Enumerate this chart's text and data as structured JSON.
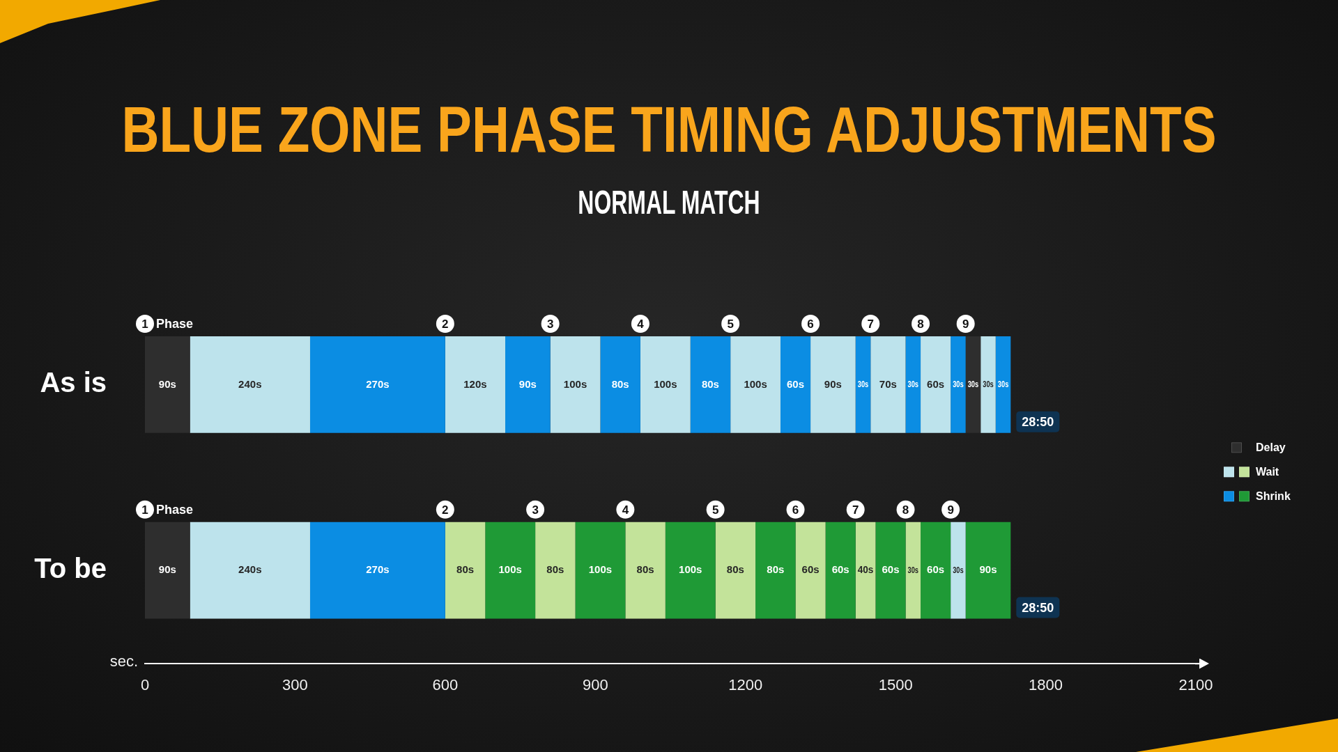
{
  "chart_data": {
    "type": "bar",
    "orientation": "horizontal",
    "stacked": true,
    "title": "BLUE ZONE PHASE TIMING ADJUSTMENTS",
    "subtitle": "NORMAL MATCH",
    "xlabel": "sec.",
    "categories": [
      "As is",
      "To be"
    ],
    "xlim": [
      0,
      2100
    ],
    "xticks": [
      0,
      300,
      600,
      900,
      1200,
      1500,
      1800,
      2100
    ],
    "legend": "right",
    "series": [
      {
        "name": "Delay",
        "colors": [
          "#2e2e2e",
          "#2e2e2e"
        ],
        "values": [
          90,
          90
        ],
        "value_labels": [
          "90s",
          "90s"
        ]
      },
      {
        "colors": [
          "#bde3ec",
          "#bde3ec"
        ],
        "values": [
          240,
          240
        ],
        "value_labels": [
          "240s",
          "240s"
        ]
      },
      {
        "colors": [
          "#0b8de3",
          "#0b8de3"
        ],
        "values": [
          270,
          270
        ],
        "value_labels": [
          "270s",
          "270s"
        ]
      },
      {
        "name": "Wait",
        "colors": [
          "#bde3ec",
          "#c3e39a"
        ],
        "values": [
          120,
          80
        ],
        "value_labels": [
          "120s",
          "80s"
        ]
      },
      {
        "name": "Shrink",
        "colors": [
          "#0b8de3",
          "#1f9a36"
        ],
        "values": [
          90,
          100
        ],
        "value_labels": [
          "90s",
          "100s"
        ]
      },
      {
        "colors": [
          "#bde3ec",
          "#c3e39a"
        ],
        "values": [
          100,
          80
        ],
        "value_labels": [
          "100s",
          "80s"
        ]
      },
      {
        "colors": [
          "#0b8de3",
          "#1f9a36"
        ],
        "values": [
          80,
          100
        ],
        "value_labels": [
          "80s",
          "100s"
        ]
      },
      {
        "colors": [
          "#bde3ec",
          "#c3e39a"
        ],
        "values": [
          100,
          80
        ],
        "value_labels": [
          "100s",
          "80s"
        ]
      },
      {
        "colors": [
          "#0b8de3",
          "#1f9a36"
        ],
        "values": [
          80,
          100
        ],
        "value_labels": [
          "80s",
          "100s"
        ]
      },
      {
        "colors": [
          "#bde3ec",
          "#c3e39a"
        ],
        "values": [
          100,
          80
        ],
        "value_labels": [
          "100s",
          "80s"
        ]
      },
      {
        "colors": [
          "#0b8de3",
          "#1f9a36"
        ],
        "values": [
          60,
          80
        ],
        "value_labels": [
          "60s",
          "80s"
        ]
      },
      {
        "colors": [
          "#bde3ec",
          "#c3e39a"
        ],
        "values": [
          90,
          60
        ],
        "value_labels": [
          "90s",
          "60s"
        ]
      },
      {
        "colors": [
          "#0b8de3",
          "#1f9a36"
        ],
        "values": [
          30,
          60
        ],
        "value_labels": [
          "30s",
          "60s"
        ]
      },
      {
        "colors": [
          "#bde3ec",
          "#c3e39a"
        ],
        "values": [
          70,
          40
        ],
        "value_labels": [
          "70s",
          "40s"
        ]
      },
      {
        "colors": [
          "#0b8de3",
          "#1f9a36"
        ],
        "values": [
          30,
          60
        ],
        "value_labels": [
          "30s",
          "60s"
        ]
      },
      {
        "colors": [
          "#bde3ec",
          "#c3e39a"
        ],
        "values": [
          60,
          30
        ],
        "value_labels": [
          "60s",
          "30s"
        ]
      },
      {
        "colors": [
          "#0b8de3",
          "#1f9a36"
        ],
        "values": [
          30,
          60
        ],
        "value_labels": [
          "30s",
          "60s"
        ]
      },
      {
        "color": "#2e2e2e",
        "values": [
          30,
          null
        ],
        "value_labels": [
          "30s",
          null
        ]
      },
      {
        "color": "#bde3ec",
        "values": [
          30,
          null
        ],
        "value_labels": [
          "30s",
          null
        ]
      },
      {
        "color": "#0b8de3",
        "values": [
          30,
          null
        ],
        "value_labels": [
          "30s",
          null
        ]
      },
      {
        "color": "#bde3ec",
        "values": [
          null,
          30
        ],
        "value_labels": [
          null,
          "30s"
        ]
      },
      {
        "color": "#1f9a36",
        "values": [
          null,
          90
        ],
        "value_labels": [
          null,
          "90s"
        ]
      }
    ],
    "totals": [
      "28:50",
      "28:50"
    ],
    "annotations": [
      {
        "text": "1",
        "x": 0
      },
      "Phase",
      {
        "text": "2",
        "x": 600
      },
      {
        "text": "3",
        "x": 810
      },
      {
        "text": "4",
        "x": 990
      },
      {
        "text": "5",
        "x": 1170
      },
      {
        "text": "6",
        "x": 1330
      },
      {
        "text": "7",
        "x": 1450
      },
      {
        "text": "8",
        "x": 1550
      },
      {
        "text": "9",
        "x": 1640
      },
      {
        "text": "1",
        "x": 0
      },
      "Phase",
      {
        "text": "2",
        "x": 600
      },
      {
        "text": "3",
        "x": 780
      },
      {
        "text": "4",
        "x": 960
      },
      {
        "text": "5",
        "x": 1140
      },
      {
        "text": "6",
        "x": 1300
      },
      {
        "text": "7",
        "x": 1420
      },
      {
        "text": "8",
        "x": 1520
      },
      {
        "text": "9",
        "x": 1610
      }
    ]
  }
}
